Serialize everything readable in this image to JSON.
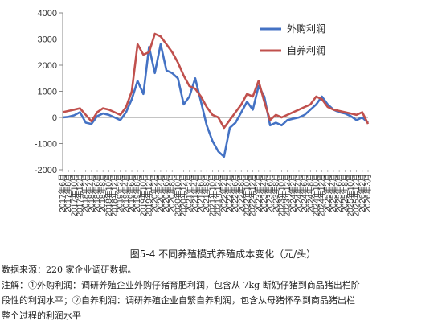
{
  "chart_data": {
    "type": "line",
    "title": "图5-4  不同养殖模式养殖成本变化（元/头）",
    "xlabel": "",
    "ylabel": "",
    "ylim": [
      -2000,
      4000
    ],
    "yticks": [
      -2000,
      -1000,
      0,
      1000,
      2000,
      3000,
      4000
    ],
    "grid": false,
    "legend_position": "top-right",
    "x_tick_labels": [
      "2017年6月",
      "2017年8月",
      "2017年10月",
      "2017年12月",
      "2018年2月",
      "2018年4月",
      "2018年6月",
      "2018年8月",
      "2018年10月",
      "2018年12月",
      "2019年2月",
      "2019年4月",
      "2019年6月",
      "2019年8月",
      "2019年10月",
      "2019年12月",
      "2020年2月",
      "2020年4月",
      "2020年6月",
      "2020年8月",
      "2020年10月",
      "2020年12月",
      "2021年2月",
      "2021年4月",
      "2021年6月",
      "2021年8月",
      "2021年10月",
      "2021年12月",
      "2022年2月",
      "2022年4月",
      "2022年6月",
      "2022年8月",
      "2022年10月",
      "2022年12月",
      "2023年2月",
      "2023年4月",
      "2023年6月",
      "2023年8月",
      "2023年10月",
      "2023年12月",
      "2024年2月",
      "2024年4月",
      "2024年6月",
      "2024年8月",
      "2024年10月",
      "2024年12月",
      "2025年2月",
      "2025年4月",
      "2025年6月",
      "2025年8月",
      "2025年10月",
      "2025年12月",
      "2026年2月",
      "2026年3月"
    ],
    "series": [
      {
        "name": "外购利润",
        "color": "#4472C4",
        "points": [
          [
            0,
            0
          ],
          [
            1,
            20
          ],
          [
            2,
            80
          ],
          [
            3,
            200
          ],
          [
            4,
            -200
          ],
          [
            5,
            -250
          ],
          [
            6,
            50
          ],
          [
            7,
            150
          ],
          [
            8,
            100
          ],
          [
            9,
            0
          ],
          [
            10,
            -100
          ],
          [
            11,
            200
          ],
          [
            12,
            700
          ],
          [
            13,
            1400
          ],
          [
            14,
            900
          ],
          [
            15,
            2700
          ],
          [
            16,
            1700
          ],
          [
            17,
            2800
          ],
          [
            18,
            1800
          ],
          [
            19,
            1700
          ],
          [
            20,
            1500
          ],
          [
            21,
            500
          ],
          [
            22,
            800
          ],
          [
            23,
            1500
          ],
          [
            24,
            600
          ],
          [
            25,
            -300
          ],
          [
            26,
            -900
          ],
          [
            27,
            -1300
          ],
          [
            28,
            -1500
          ],
          [
            29,
            -400
          ],
          [
            30,
            -200
          ],
          [
            31,
            200
          ],
          [
            32,
            600
          ],
          [
            33,
            300
          ],
          [
            34,
            1200
          ],
          [
            35,
            800
          ],
          [
            36,
            -300
          ],
          [
            37,
            -200
          ],
          [
            38,
            -300
          ],
          [
            39,
            -100
          ],
          [
            40,
            -50
          ],
          [
            41,
            0
          ],
          [
            42,
            100
          ],
          [
            43,
            300
          ],
          [
            44,
            500
          ],
          [
            45,
            800
          ],
          [
            46,
            500
          ],
          [
            47,
            300
          ],
          [
            48,
            200
          ],
          [
            49,
            150
          ],
          [
            50,
            50
          ],
          [
            51,
            -100
          ],
          [
            52,
            0
          ],
          [
            53,
            -200
          ]
        ]
      },
      {
        "name": "自养利润",
        "color": "#C0504D",
        "points": [
          [
            0,
            200
          ],
          [
            1,
            250
          ],
          [
            2,
            300
          ],
          [
            3,
            350
          ],
          [
            4,
            100
          ],
          [
            5,
            -150
          ],
          [
            6,
            200
          ],
          [
            7,
            350
          ],
          [
            8,
            300
          ],
          [
            9,
            200
          ],
          [
            10,
            100
          ],
          [
            11,
            400
          ],
          [
            12,
            1000
          ],
          [
            13,
            2800
          ],
          [
            14,
            2400
          ],
          [
            15,
            2500
          ],
          [
            16,
            3200
          ],
          [
            17,
            3100
          ],
          [
            18,
            2800
          ],
          [
            19,
            2500
          ],
          [
            20,
            2100
          ],
          [
            21,
            1600
          ],
          [
            22,
            1200
          ],
          [
            23,
            1100
          ],
          [
            24,
            800
          ],
          [
            25,
            400
          ],
          [
            26,
            100
          ],
          [
            27,
            0
          ],
          [
            28,
            -400
          ],
          [
            29,
            -100
          ],
          [
            30,
            200
          ],
          [
            31,
            500
          ],
          [
            32,
            900
          ],
          [
            33,
            800
          ],
          [
            34,
            1400
          ],
          [
            35,
            600
          ],
          [
            36,
            -100
          ],
          [
            37,
            100
          ],
          [
            38,
            0
          ],
          [
            39,
            100
          ],
          [
            40,
            200
          ],
          [
            41,
            300
          ],
          [
            42,
            400
          ],
          [
            43,
            500
          ],
          [
            44,
            800
          ],
          [
            45,
            700
          ],
          [
            46,
            400
          ],
          [
            47,
            300
          ],
          [
            48,
            250
          ],
          [
            49,
            200
          ],
          [
            50,
            150
          ],
          [
            51,
            100
          ],
          [
            52,
            200
          ],
          [
            53,
            -250
          ]
        ]
      }
    ]
  },
  "caption": {
    "title": "图5-4  不同养殖模式养殖成本变化（元/头）",
    "source": "数据来源：220 家企业调研数据。",
    "note_line1": "注解：①外购利润：调研养殖企业外购仔猪育肥利润，包含从 7kg 断奶仔猪到商品猪出栏阶",
    "note_line2": "段性的利润水平；②自养利润：调研养殖企业自繁自养利润，包含从母猪怀孕到商品猪出栏",
    "note_line3": "整个过程的利润水平"
  }
}
